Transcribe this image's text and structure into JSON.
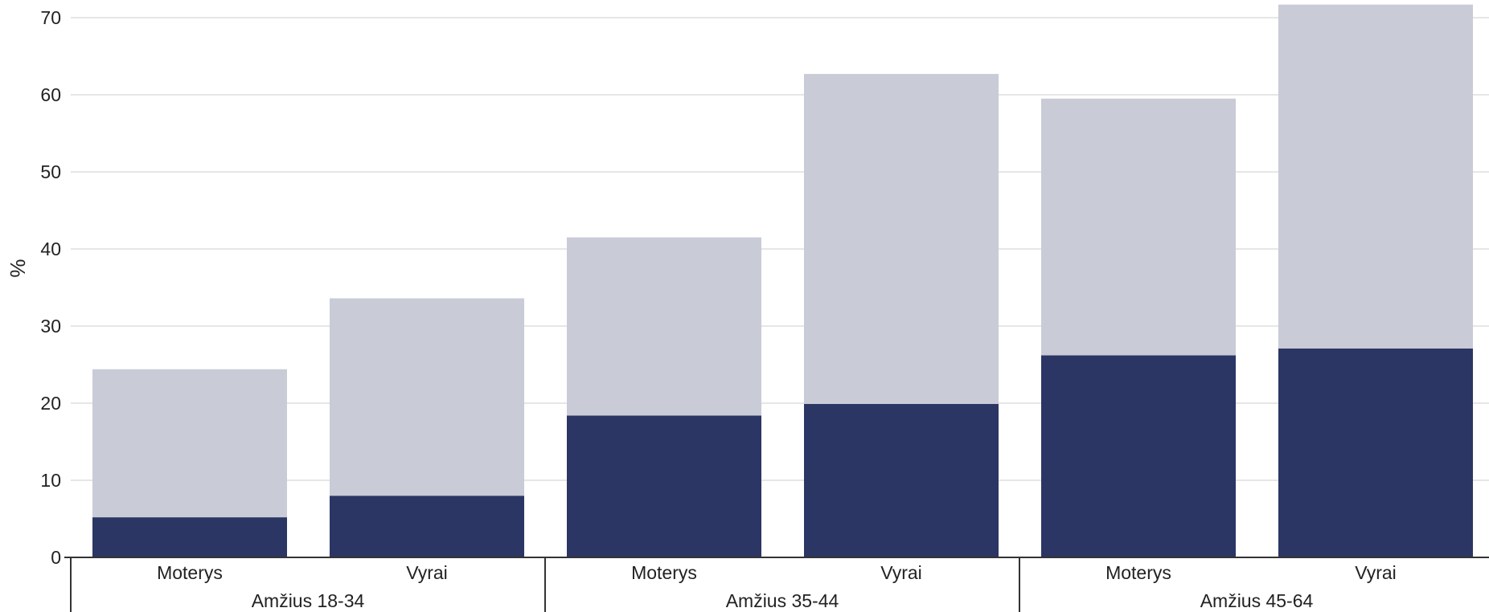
{
  "chart_data": {
    "type": "bar",
    "stacked": true,
    "ylabel": "%",
    "ylim": [
      0,
      70
    ],
    "yticks": [
      "0",
      "10",
      "20",
      "30",
      "40",
      "50",
      "60",
      "70"
    ],
    "grid": true,
    "groups": [
      {
        "label": "Amžius 18-34",
        "categories": [
          "Moterys",
          "Vyrai"
        ]
      },
      {
        "label": "Amžius 35-44",
        "categories": [
          "Moterys",
          "Vyrai"
        ]
      },
      {
        "label": "Amžius 45-64",
        "categories": [
          "Moterys",
          "Vyrai"
        ]
      }
    ],
    "categories": [
      "Moterys",
      "Vyrai",
      "Moterys",
      "Vyrai",
      "Moterys",
      "Vyrai"
    ],
    "series": [
      {
        "values": [
          5.2,
          8.0,
          18.4,
          19.9,
          26.2,
          27.1
        ],
        "color": "#2b3664"
      },
      {
        "values": [
          19.2,
          25.6,
          23.1,
          42.8,
          33.3,
          44.6
        ],
        "color": "#c9cbd7"
      }
    ],
    "colors": {
      "grid": "#e6e6e6",
      "axis": "#333333",
      "text": "#222222"
    }
  }
}
